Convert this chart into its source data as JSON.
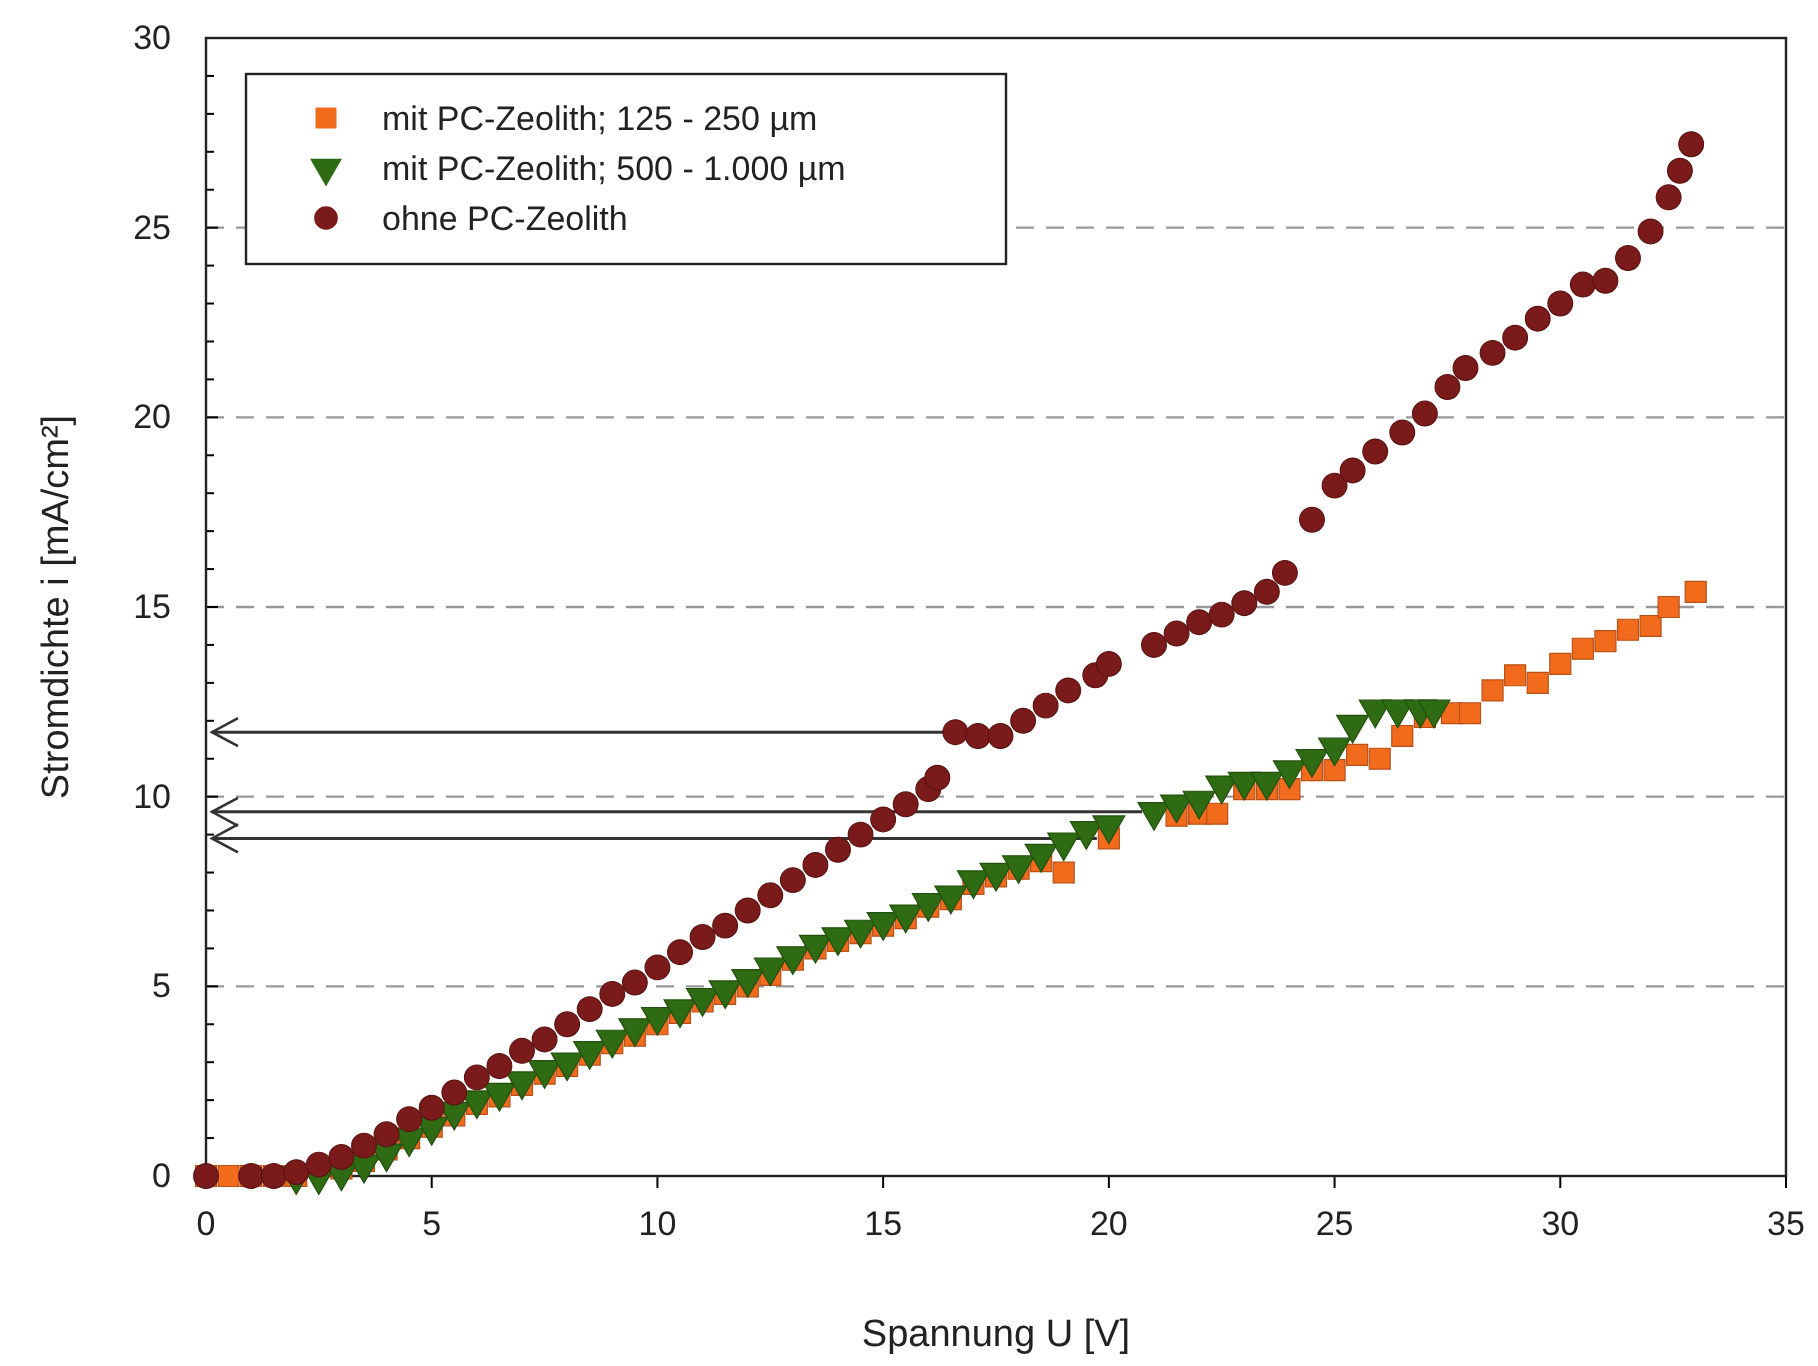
{
  "chart_data": {
    "type": "scatter",
    "xlabel": "Spannung U [V]",
    "ylabel": "Stromdichte i [mA/cm²]",
    "xlim": [
      0,
      35
    ],
    "ylim": [
      0,
      30
    ],
    "xticks": [
      0,
      5,
      10,
      15,
      20,
      25,
      30,
      35
    ],
    "yticks": [
      0,
      {
        "value": 1,
        "label": null
      },
      {
        "value": 2,
        "label": null
      },
      {
        "value": 3,
        "label": null
      },
      {
        "value": 4,
        "label": null
      },
      5,
      {
        "value": 6,
        "label": null
      },
      {
        "value": 7,
        "label": null
      },
      {
        "value": 8,
        "label": null
      },
      {
        "value": 9,
        "label": null
      },
      10,
      {
        "value": 11,
        "label": null
      },
      {
        "value": 12,
        "label": null
      },
      {
        "value": 13,
        "label": null
      },
      {
        "value": 14,
        "label": null
      },
      15,
      {
        "value": 16,
        "label": null
      },
      {
        "value": 17,
        "label": null
      },
      {
        "value": 18,
        "label": null
      },
      {
        "value": 19,
        "label": null
      },
      20,
      {
        "value": 21,
        "label": null
      },
      {
        "value": 22,
        "label": null
      },
      {
        "value": 23,
        "label": null
      },
      {
        "value": 24,
        "label": null
      },
      25,
      {
        "value": 26,
        "label": null
      },
      {
        "value": 27,
        "label": null
      },
      {
        "value": 28,
        "label": null
      },
      {
        "value": 29,
        "label": null
      },
      30
    ],
    "grid": "y",
    "legend": "top left",
    "series": [
      {
        "name": "mit PC-Zeolith; 125 - 250 µm",
        "color": "#f26b1d",
        "marker": "square",
        "x": [
          0,
          0.5,
          1,
          1.5,
          2,
          3,
          3.5,
          4,
          4.5,
          5,
          5.5,
          6,
          6.5,
          7,
          7.5,
          8,
          8.5,
          9,
          9.5,
          10,
          10.5,
          11,
          11.5,
          12,
          12.5,
          13,
          13.5,
          14,
          14.5,
          15,
          15.5,
          16,
          16.5,
          17,
          17.5,
          18,
          18.5,
          19,
          20,
          21.5,
          22,
          22.4,
          23,
          23.5,
          24,
          24.5,
          25,
          25.5,
          26,
          26.5,
          27,
          27.6,
          28,
          28.5,
          29,
          29.5,
          30,
          30.5,
          31,
          31.5,
          32,
          32.4,
          33
        ],
        "values": [
          0,
          0,
          0,
          0,
          0,
          0.2,
          0.4,
          0.7,
          1,
          1.3,
          1.6,
          1.9,
          2.1,
          2.4,
          2.7,
          2.9,
          3.2,
          3.5,
          3.7,
          4,
          4.3,
          4.6,
          4.8,
          5,
          5.3,
          5.7,
          6,
          6.2,
          6.4,
          6.6,
          6.8,
          7.1,
          7.3,
          7.7,
          7.9,
          8.1,
          8.3,
          8,
          8.9,
          9.5,
          9.55,
          9.55,
          10.2,
          10.2,
          10.2,
          10.7,
          10.7,
          11.1,
          11,
          11.6,
          12.1,
          12.2,
          12.2,
          12.8,
          13.2,
          13,
          13.5,
          13.9,
          14.1,
          14.4,
          14.5,
          15,
          15.4
        ]
      },
      {
        "name": "mit PC-Zeolith; 500 - 1.000 µm",
        "color": "#2e6b12",
        "marker": "triangle",
        "x": [
          2,
          2.5,
          3,
          3.5,
          4,
          4.5,
          5,
          5.5,
          6,
          6.5,
          7,
          7.5,
          8,
          8.5,
          9,
          9.5,
          10,
          10.5,
          11,
          11.5,
          12,
          12.5,
          13,
          13.5,
          14,
          14.5,
          15,
          15.5,
          16,
          16.5,
          17,
          17.5,
          18,
          18.5,
          19,
          19.5,
          20,
          21,
          21.5,
          22,
          22.5,
          23,
          23.5,
          24,
          24.5,
          25,
          25.4,
          25.9,
          26.4,
          26.9,
          27.2
        ],
        "values": [
          0,
          0,
          0.1,
          0.3,
          0.6,
          1,
          1.3,
          1.7,
          2,
          2.2,
          2.5,
          2.8,
          3,
          3.3,
          3.6,
          3.9,
          4.2,
          4.4,
          4.7,
          4.9,
          5.2,
          5.5,
          5.8,
          6.1,
          6.3,
          6.5,
          6.7,
          6.9,
          7.2,
          7.4,
          7.8,
          8,
          8.2,
          8.5,
          8.8,
          9.1,
          9.25,
          9.6,
          9.8,
          9.9,
          10.3,
          10.4,
          10.4,
          10.7,
          11,
          11.3,
          11.9,
          12.3,
          12.3,
          12.3,
          12.3
        ]
      },
      {
        "name": "ohne PC-Zeolith",
        "color": "#7a1a1a",
        "marker": "circle",
        "x": [
          0,
          1,
          1.5,
          2,
          2.5,
          3,
          3.5,
          4,
          4.5,
          5,
          5.5,
          6,
          6.5,
          7,
          7.5,
          8,
          8.5,
          9,
          9.5,
          10,
          10.5,
          11,
          11.5,
          12,
          12.5,
          13,
          13.5,
          14,
          14.5,
          15,
          15.5,
          16,
          16.2,
          16.6,
          17.1,
          17.6,
          18.1,
          18.6,
          19.1,
          19.7,
          20,
          21,
          21.5,
          22,
          22.5,
          23,
          23.5,
          23.9,
          24.5,
          25,
          25.4,
          25.9,
          26.5,
          27,
          27.5,
          27.9,
          28.5,
          29,
          29.5,
          30,
          30.5,
          31,
          31.5,
          32,
          32.4,
          32.65,
          32.9
        ],
        "values": [
          0,
          0,
          0,
          0.1,
          0.3,
          0.5,
          0.8,
          1.1,
          1.5,
          1.8,
          2.2,
          2.6,
          2.9,
          3.3,
          3.6,
          4,
          4.4,
          4.8,
          5.1,
          5.5,
          5.9,
          6.3,
          6.6,
          7,
          7.4,
          7.8,
          8.2,
          8.6,
          9,
          9.4,
          9.8,
          10.2,
          10.5,
          11.7,
          11.6,
          11.6,
          12,
          12.4,
          12.8,
          13.2,
          13.5,
          14,
          14.3,
          14.6,
          14.8,
          15.1,
          15.4,
          15.9,
          17.3,
          18.2,
          18.6,
          19.1,
          19.6,
          20.1,
          20.8,
          21.3,
          21.7,
          22.1,
          22.6,
          23,
          23.5,
          23.6,
          24.2,
          24.9,
          25.8,
          26.5,
          27.2
        ]
      }
    ],
    "ref_lines": [
      {
        "axis": "y",
        "value": 11.7,
        "color": "#333333"
      },
      {
        "axis": "y",
        "value": 9.6,
        "color": "#333333"
      },
      {
        "axis": "y",
        "value": 8.9,
        "color": "#333333"
      }
    ]
  }
}
